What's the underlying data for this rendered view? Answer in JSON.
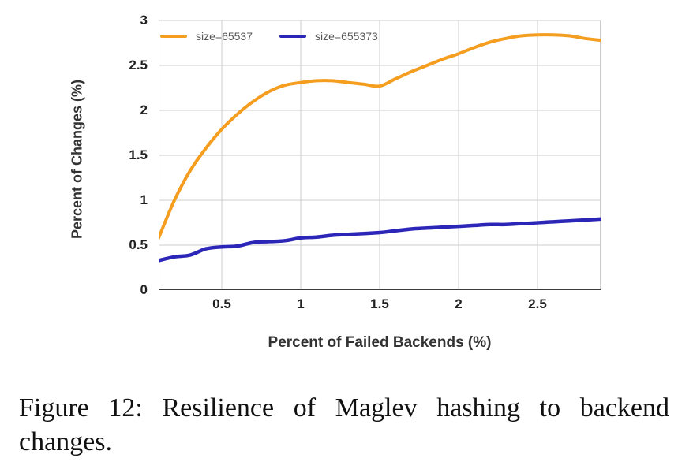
{
  "colors": {
    "grid": "#cccccc",
    "axis": "#3b3b3b",
    "tick_text": "#222222",
    "legend_text": "#58585a",
    "axis_title_text": "#333333",
    "caption_text": "#111111",
    "background": "#ffffff",
    "series_orange": "#f49d1e",
    "series_blue": "#2b26b8"
  },
  "chart_data": {
    "type": "line",
    "title": "",
    "xlabel": "Percent of Failed Backends (%)",
    "ylabel": "Percent of Changes (%)",
    "xlim": [
      0.1,
      2.9
    ],
    "ylim": [
      0,
      3
    ],
    "x_ticks": [
      "0.5",
      "1",
      "1.5",
      "2",
      "2.5"
    ],
    "y_ticks": [
      "0",
      "0.5",
      "1",
      "1.5",
      "2",
      "2.5",
      "3"
    ],
    "grid": true,
    "legend_position": "top-left-inside",
    "x": [
      0.1,
      0.2,
      0.3,
      0.4,
      0.5,
      0.6,
      0.7,
      0.8,
      0.9,
      1.0,
      1.1,
      1.2,
      1.3,
      1.4,
      1.5,
      1.6,
      1.7,
      1.8,
      1.9,
      2.0,
      2.1,
      2.2,
      2.3,
      2.4,
      2.5,
      2.6,
      2.7,
      2.8,
      2.9
    ],
    "series": [
      {
        "name": "size=65537",
        "color": "#f49d1e",
        "stroke_width": 4,
        "values": [
          0.58,
          1.0,
          1.33,
          1.58,
          1.79,
          1.96,
          2.1,
          2.21,
          2.28,
          2.31,
          2.33,
          2.33,
          2.31,
          2.29,
          2.27,
          2.35,
          2.43,
          2.5,
          2.57,
          2.63,
          2.7,
          2.76,
          2.8,
          2.83,
          2.84,
          2.84,
          2.83,
          2.8,
          2.78
        ]
      },
      {
        "name": "size=655373",
        "color": "#2b26b8",
        "stroke_width": 4.5,
        "values": [
          0.33,
          0.37,
          0.39,
          0.46,
          0.48,
          0.49,
          0.53,
          0.54,
          0.55,
          0.58,
          0.59,
          0.61,
          0.62,
          0.63,
          0.64,
          0.66,
          0.68,
          0.69,
          0.7,
          0.71,
          0.72,
          0.73,
          0.73,
          0.74,
          0.75,
          0.76,
          0.77,
          0.78,
          0.79
        ]
      }
    ]
  },
  "caption": {
    "line1": "Figure 12: Resilience of Maglev hashing to backend",
    "line2": "changes."
  }
}
